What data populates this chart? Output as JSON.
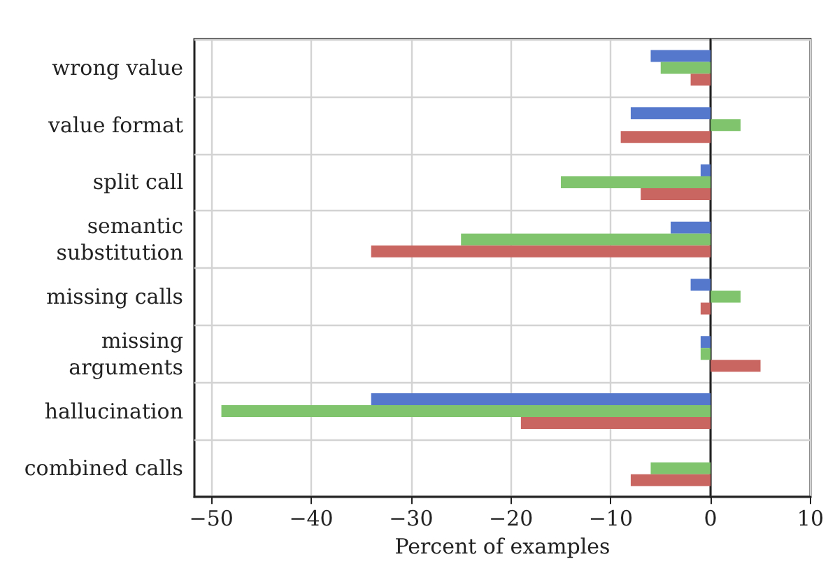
{
  "chart_data": {
    "type": "bar",
    "orientation": "horizontal",
    "xlabel": "Percent of examples",
    "categories": [
      "wrong value",
      "value format",
      "split call",
      "semantic\nsubstitution",
      "missing calls",
      "missing\narguments",
      "hallucination",
      "combined calls"
    ],
    "series": [
      {
        "color": "#5578cc",
        "values": [
          -6,
          -8,
          -1,
          -4,
          -2,
          -1,
          -34,
          null
        ]
      },
      {
        "color": "#80c56d",
        "values": [
          -5,
          3,
          -15,
          -25,
          3,
          -1,
          -49,
          -6
        ]
      },
      {
        "color": "#c96662",
        "values": [
          -2,
          -9,
          -7,
          -34,
          -1,
          5,
          -19,
          -8
        ]
      }
    ],
    "xlim": [
      -51.7,
      10
    ],
    "xticks": [
      -50,
      -40,
      -30,
      -20,
      -10,
      0,
      10
    ],
    "grid": true
  }
}
